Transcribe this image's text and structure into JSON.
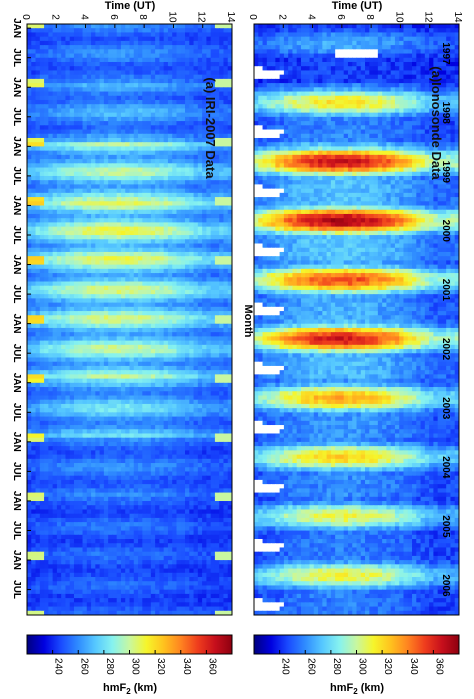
{
  "chart_data": [
    {
      "type": "heatmap",
      "panel_label": "(a) IRI-2007  Data",
      "xlabel": "Time (UT)",
      "xlim": [
        0,
        14
      ],
      "x_ticks": [
        "0",
        "2",
        "4",
        "6",
        "8",
        "10",
        "12",
        "14"
      ],
      "ylabel": "Month",
      "y_ticks": [
        "JAN",
        "JUL",
        "JAN",
        "JUL",
        "JAN",
        "JUL",
        "JAN",
        "JUL",
        "JAN",
        "JUL",
        "JAN",
        "JUL",
        "JAN",
        "JUL",
        "JAN",
        "JUL",
        "JAN",
        "JUL",
        "JAN",
        "JUL"
      ],
      "annual_peak_hmF2_km": [
        262,
        272,
        300,
        312,
        306,
        302,
        284,
        262,
        256,
        254
      ],
      "colorbar": {
        "label": "hmF2 (km)",
        "range": [
          220,
          380
        ],
        "ticks": [
          "240",
          "260",
          "280",
          "300",
          "320",
          "340",
          "360"
        ]
      }
    },
    {
      "type": "heatmap",
      "panel_label": "(a)Ionosonde Data",
      "xlabel": "Time (UT)",
      "xlim": [
        0,
        14
      ],
      "x_ticks": [
        "0",
        "2",
        "4",
        "6",
        "8",
        "10",
        "12",
        "14"
      ],
      "years": [
        "1997",
        "1998",
        "1999",
        "2000",
        "2001",
        "2002",
        "2003",
        "2004",
        "2005",
        "2006"
      ],
      "annual_peak_hmF2_km": [
        268,
        318,
        368,
        374,
        352,
        364,
        332,
        322,
        310,
        312
      ],
      "colorbar": {
        "label": "hmF2 (km)",
        "range": [
          220,
          380
        ],
        "ticks": [
          "240",
          "260",
          "280",
          "300",
          "320",
          "340",
          "360"
        ]
      }
    }
  ],
  "colors": {
    "scale": [
      "#00007f",
      "#0000e0",
      "#1a4bff",
      "#2f8cff",
      "#56c8ff",
      "#86f2ef",
      "#c8f7a0",
      "#f6f52a",
      "#ffc21e",
      "#ff8420",
      "#ef3d1d",
      "#c70f1c",
      "#8e0010"
    ],
    "gap": "#ffffff"
  }
}
